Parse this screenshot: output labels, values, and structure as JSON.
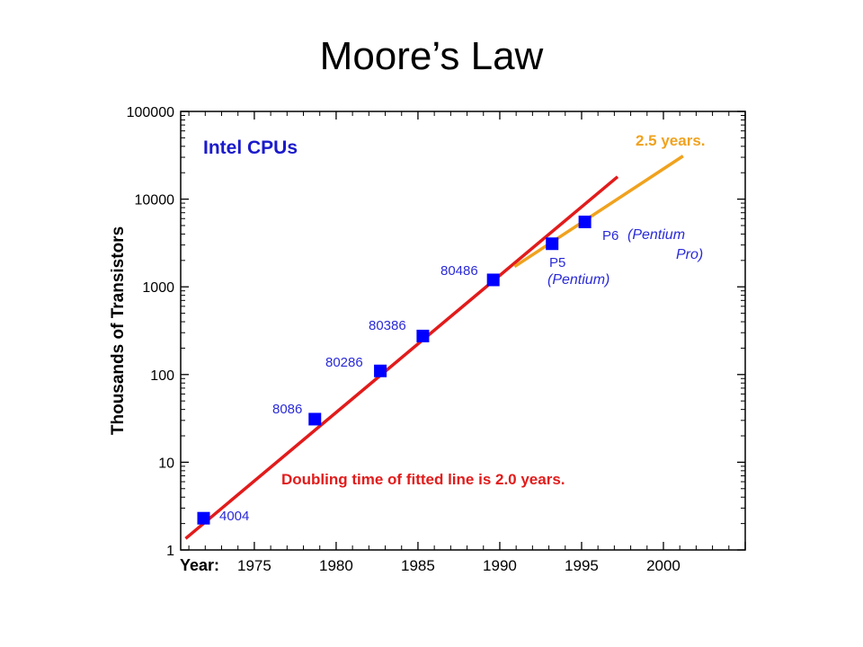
{
  "slide": {
    "title": "Moore’s Law"
  },
  "chart_data": {
    "type": "scatter",
    "title": "Intel CPUs",
    "xlabel": "Year:",
    "ylabel": "Thousands of Transistors",
    "y_scale": "log",
    "xlim": [
      1970.5,
      2005
    ],
    "ylim": [
      1,
      100000
    ],
    "x_ticks": [
      "1975",
      "1980",
      "1985",
      "1990",
      "1995",
      "2000"
    ],
    "y_ticks": [
      "1",
      "10",
      "100",
      "1000",
      "10000",
      "100000"
    ],
    "grid": false,
    "points": [
      {
        "label": "4004",
        "year": 1971.9,
        "value": 2.3
      },
      {
        "label": "8086",
        "year": 1978.7,
        "value": 31
      },
      {
        "label": "80286",
        "year": 1982.7,
        "value": 110
      },
      {
        "label": "80386",
        "year": 1985.3,
        "value": 275
      },
      {
        "label": "80486",
        "year": 1989.6,
        "value": 1200
      },
      {
        "label": "P5",
        "sublabel": "(Pentium)",
        "year": 1993.2,
        "value": 3100
      },
      {
        "label": "P6",
        "sublabel": "(Pentium",
        "sublabel2": "Pro)",
        "year": 1995.2,
        "value": 5500
      }
    ],
    "fits": [
      {
        "label": "Doubling time of fitted line is 2.0 years.",
        "color": "#e21b1b",
        "x": [
          1970.8,
          1997.2
        ],
        "y": [
          1.35,
          18000
        ]
      },
      {
        "label": "2.5 years.",
        "color": "#f0a21e",
        "x": [
          1990.9,
          2001.2
        ],
        "y": [
          1700,
          31000
        ]
      }
    ],
    "colors": {
      "points": "#0000ff",
      "labels": "#2a2ad8",
      "title": "#1a1acc"
    }
  }
}
